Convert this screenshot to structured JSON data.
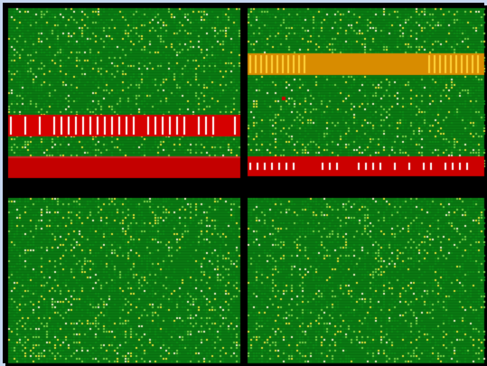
{
  "image": {
    "description_free": true,
    "panels": [
      {
        "id": "top-left",
        "background_color": "#0a7a12",
        "bands": [
          {
            "kind": "red-with-white-stripes",
            "color": "#d60000",
            "accent": "#ffffff"
          },
          {
            "kind": "solid-red",
            "color": "#c40000"
          }
        ]
      },
      {
        "id": "top-right",
        "background_color": "#0a7a12",
        "bands": [
          {
            "kind": "orange-with-yellow-stripes",
            "color": "#d88c00",
            "accent": "#ffd23a"
          },
          {
            "kind": "red-with-white-dashes",
            "color": "#cc0000",
            "accent": "#ffffff"
          }
        ]
      },
      {
        "id": "bottom-left",
        "background_color": "#0a7a12",
        "bands": []
      },
      {
        "id": "bottom-right",
        "background_color": "#0a7a12",
        "bands": []
      }
    ],
    "colors": {
      "frame": "#c7d8f0",
      "divider": "#000000",
      "speckle_light": "#7bd34a",
      "speckle_yellow": "#e6e23a",
      "speckle_white": "#f3f3c8"
    }
  }
}
